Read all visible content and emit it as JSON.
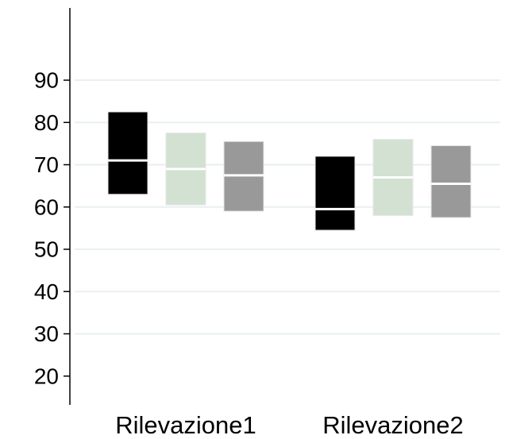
{
  "chart_data": {
    "type": "box",
    "title": "",
    "xlabel": "",
    "ylabel": "",
    "ylim": [
      12,
      110
    ],
    "yticks": [
      20,
      30,
      40,
      50,
      60,
      70,
      80,
      90
    ],
    "yticks_labels": [
      "20",
      "30",
      "40",
      "50",
      "60",
      "70",
      "80",
      "90"
    ],
    "grid": true,
    "legend": "none",
    "categories": [
      "Rilevazione1",
      "Rilevazione2"
    ],
    "series": [
      {
        "color": "#000000",
        "boxes": [
          {
            "q1": 63,
            "median": 71,
            "q3": 82.5
          },
          {
            "q1": 54.5,
            "median": 59.5,
            "q3": 72
          }
        ]
      },
      {
        "color": "#d2e1d2",
        "boxes": [
          {
            "q1": 60.5,
            "median": 69,
            "q3": 77.5
          },
          {
            "q1": 58,
            "median": 67,
            "q3": 76
          }
        ]
      },
      {
        "color": "#999999",
        "boxes": [
          {
            "q1": 59,
            "median": 67.5,
            "q3": 75.5
          },
          {
            "q1": 57.5,
            "median": 65.5,
            "q3": 74.5
          }
        ]
      }
    ],
    "colors": {
      "grid": "#e9eff2",
      "median": "#ffffff",
      "axis": "#000000"
    }
  }
}
